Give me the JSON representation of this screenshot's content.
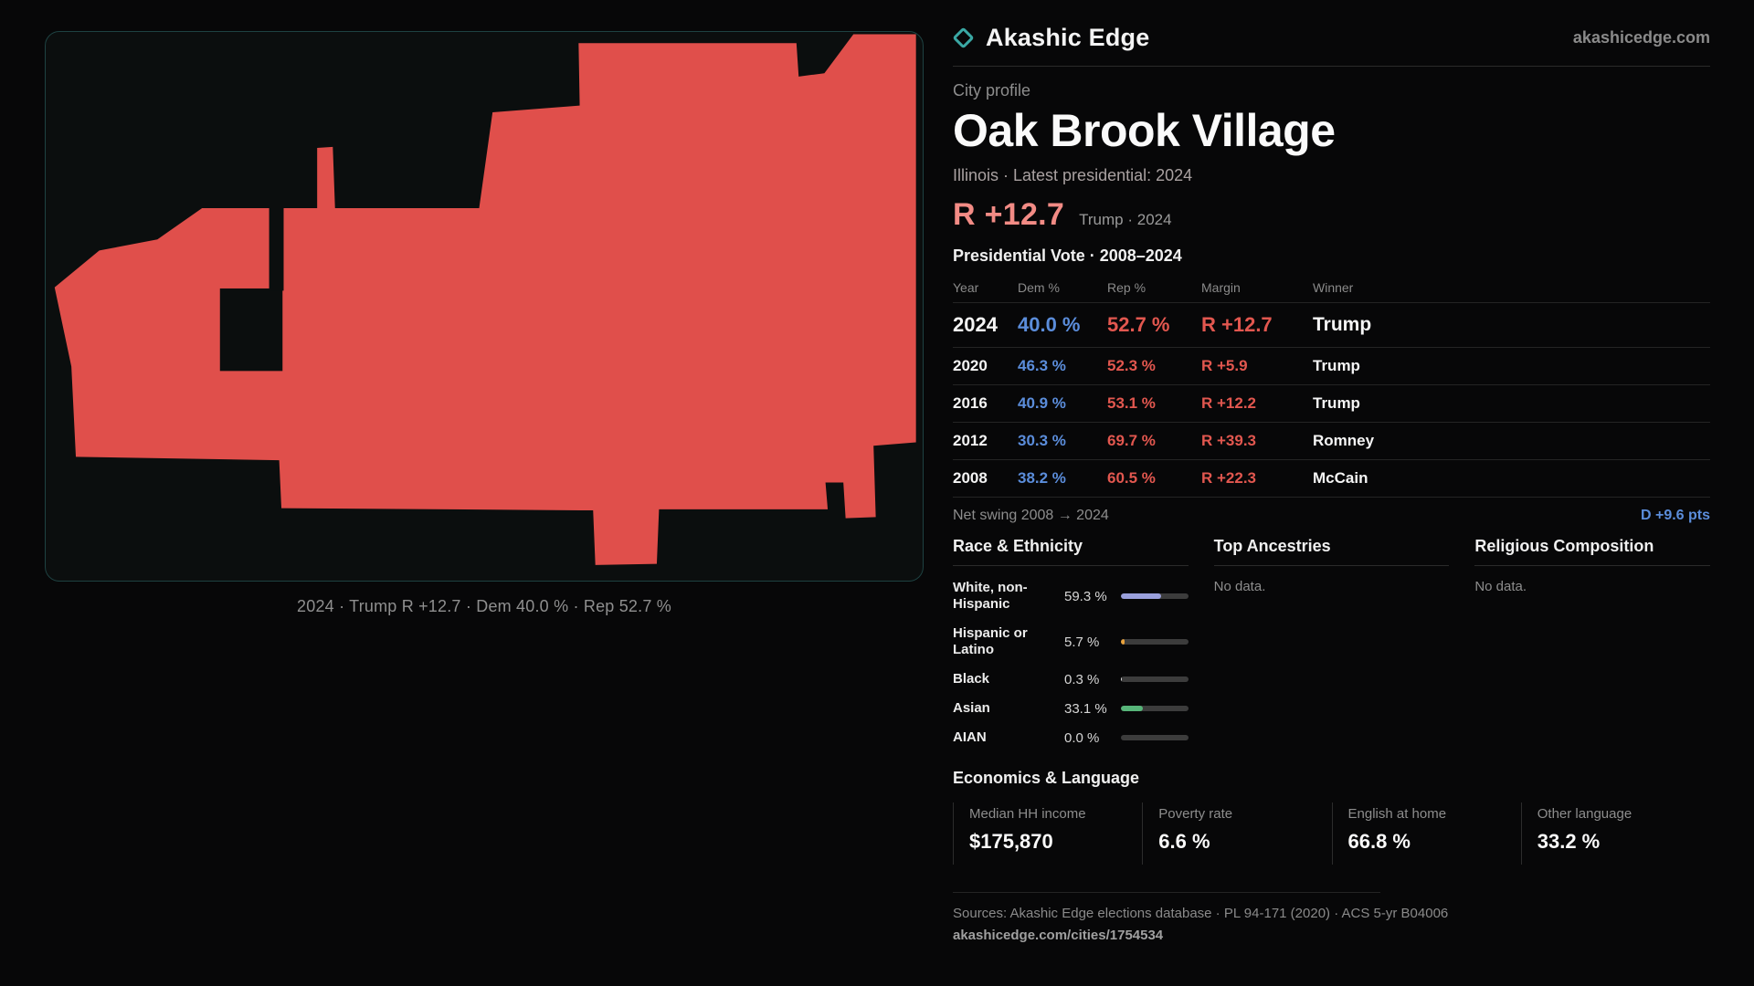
{
  "brand": {
    "name": "Akashic Edge",
    "domain": "akashicedge.com",
    "accent_teal": "#3aa8a4"
  },
  "map": {
    "caption": "2024 · Trump R +12.7 · Dem 40.0 % · Rep 52.7 %",
    "fill_color": "#e04f4b",
    "border_color": "#1e4242"
  },
  "profile": {
    "kicker": "City profile",
    "title": "Oak Brook Village",
    "subtitle": "Illinois · Latest presidential: 2024",
    "headline_margin": "R +12.7",
    "headline_context": "Trump · 2024",
    "margin_color": "#f28b85"
  },
  "vote_table": {
    "title": "Presidential Vote · 2008–2024",
    "columns": [
      "Year",
      "Dem %",
      "Rep %",
      "Margin",
      "Winner"
    ],
    "dem_color": "#5b8ddb",
    "rep_color": "#e2574f",
    "rows": [
      {
        "year": "2024",
        "dem": "40.0 %",
        "rep": "52.7 %",
        "margin": "R +12.7",
        "winner": "Trump"
      },
      {
        "year": "2020",
        "dem": "46.3 %",
        "rep": "52.3 %",
        "margin": "R +5.9",
        "winner": "Trump"
      },
      {
        "year": "2016",
        "dem": "40.9 %",
        "rep": "53.1 %",
        "margin": "R +12.2",
        "winner": "Trump"
      },
      {
        "year": "2012",
        "dem": "30.3 %",
        "rep": "69.7 %",
        "margin": "R +39.3",
        "winner": "Romney"
      },
      {
        "year": "2008",
        "dem": "38.2 %",
        "rep": "60.5 %",
        "margin": "R +22.3",
        "winner": "McCain"
      }
    ]
  },
  "net_swing": {
    "label": "Net swing 2008 → 2024",
    "value": "D +9.6 pts",
    "value_color": "#5b8ddb"
  },
  "demographics": {
    "race": {
      "title": "Race & Ethnicity",
      "rows": [
        {
          "label": "White, non-Hispanic",
          "value": "59.3 %",
          "pct": 59.3,
          "color": "#9aa0dc"
        },
        {
          "label": "Hispanic or Latino",
          "value": "5.7 %",
          "pct": 5.7,
          "color": "#e8a23c"
        },
        {
          "label": "Black",
          "value": "0.3 %",
          "pct": 0.3,
          "color": "#e0e0e0"
        },
        {
          "label": "Asian",
          "value": "33.1 %",
          "pct": 33.1,
          "color": "#57b579"
        },
        {
          "label": "AIAN",
          "value": "0.0 %",
          "pct": 0.0,
          "color": "#e0e0e0"
        }
      ]
    },
    "ancestries": {
      "title": "Top Ancestries",
      "empty": "No data."
    },
    "religion": {
      "title": "Religious Composition",
      "empty": "No data."
    }
  },
  "economics": {
    "title": "Economics & Language",
    "stats": [
      {
        "label": "Median HH income",
        "value": "$175,870"
      },
      {
        "label": "Poverty rate",
        "value": "6.6 %"
      },
      {
        "label": "English at home",
        "value": "66.8 %"
      },
      {
        "label": "Other language",
        "value": "33.2 %"
      }
    ]
  },
  "footer": {
    "sources": "Sources: Akashic Edge elections database · PL 94-171 (2020) · ACS 5-yr B04006",
    "permalink": "akashicedge.com/cities/1754534"
  }
}
